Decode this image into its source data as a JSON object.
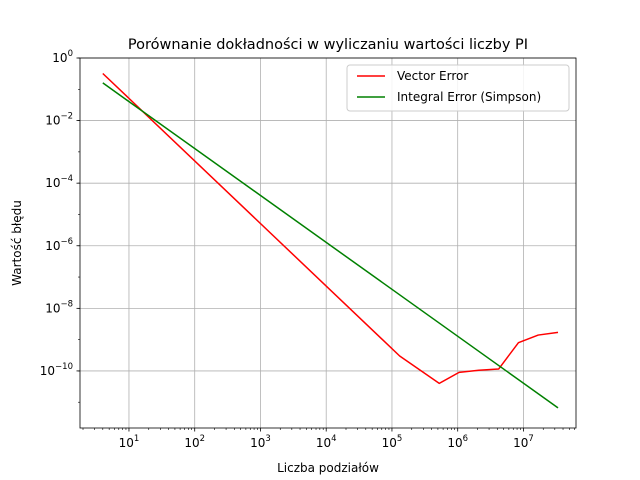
{
  "chart_data": {
    "type": "line",
    "title": "Porównanie dokładności w wyliczaniu wartości liczby PI",
    "xlabel": "Liczba podziałów",
    "ylabel": "Wartość błędu",
    "xscale": "log",
    "yscale": "log",
    "xlim": [
      1.8,
      63000000
    ],
    "ylim": [
      1.5e-12,
      1
    ],
    "x_ticks": [
      {
        "base": "10",
        "exp": "1",
        "value": 10
      },
      {
        "base": "10",
        "exp": "2",
        "value": 100
      },
      {
        "base": "10",
        "exp": "3",
        "value": 1000
      },
      {
        "base": "10",
        "exp": "4",
        "value": 10000
      },
      {
        "base": "10",
        "exp": "5",
        "value": 100000
      },
      {
        "base": "10",
        "exp": "6",
        "value": 1000000
      },
      {
        "base": "10",
        "exp": "7",
        "value": 10000000
      }
    ],
    "y_ticks": [
      {
        "base": "10",
        "exp": "0",
        "value": 1
      },
      {
        "base": "10",
        "exp": "−2",
        "value": 0.01
      },
      {
        "base": "10",
        "exp": "−4",
        "value": 0.0001
      },
      {
        "base": "10",
        "exp": "−6",
        "value": 1e-06
      },
      {
        "base": "10",
        "exp": "−8",
        "value": 1e-08
      },
      {
        "base": "10",
        "exp": "−10",
        "value": 1e-10
      }
    ],
    "grid": true,
    "legend_position": "top-right",
    "series": [
      {
        "name": "Vector Error",
        "color": "#ff0000",
        "x": [
          4,
          131072,
          524288,
          1048576,
          2097152,
          4194304,
          8388608,
          16777216,
          33554432
        ],
        "y": [
          0.32,
          3e-10,
          4e-11,
          9e-11,
          1.05e-10,
          1.15e-10,
          8e-10,
          1.4e-09,
          1.7e-09
        ]
      },
      {
        "name": "Integral Error (Simpson)",
        "color": "#008000",
        "x": [
          4,
          33554432
        ],
        "y": [
          0.16,
          6.6e-12
        ]
      }
    ]
  }
}
